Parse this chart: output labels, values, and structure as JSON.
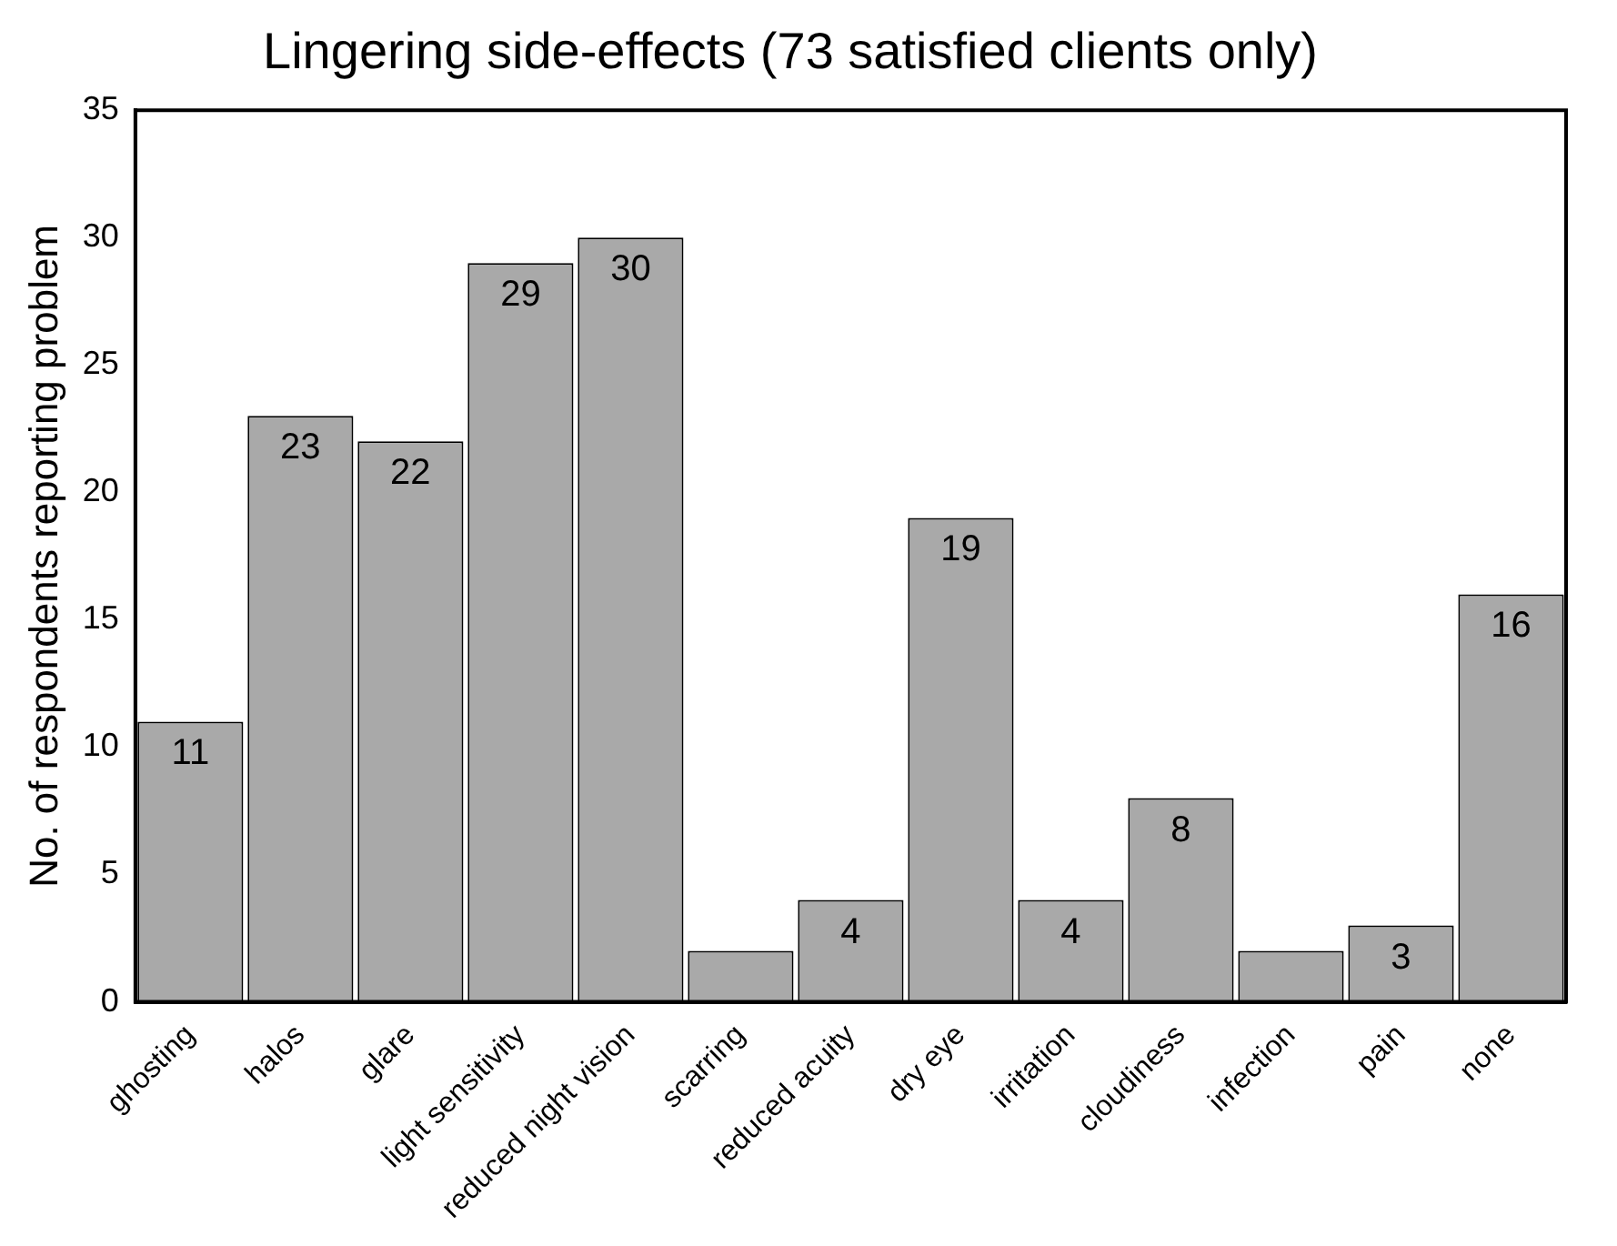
{
  "chart_data": {
    "type": "bar",
    "title": "Lingering side-effects (73 satisfied clients only)",
    "ylabel": "No. of respondents reporting problem",
    "categories": [
      "ghosting",
      "halos",
      "glare",
      "light sensitivity",
      "reduced night vision",
      "scarring",
      "reduced acuity",
      "dry eye",
      "irritation",
      "cloudiness",
      "infection",
      "pain",
      "none"
    ],
    "values": [
      11,
      23,
      22,
      29,
      30,
      2,
      4,
      19,
      4,
      8,
      2,
      3,
      16
    ],
    "value_labels": [
      "11",
      "23",
      "22",
      "29",
      "30",
      null,
      "4",
      "19",
      "4",
      "8",
      null,
      "3",
      "16"
    ],
    "color": "#a9a9a9",
    "ylim": [
      0,
      35
    ],
    "yticks": [
      0,
      5,
      10,
      15,
      20,
      25,
      30,
      35
    ],
    "grid": false,
    "legend": false
  }
}
